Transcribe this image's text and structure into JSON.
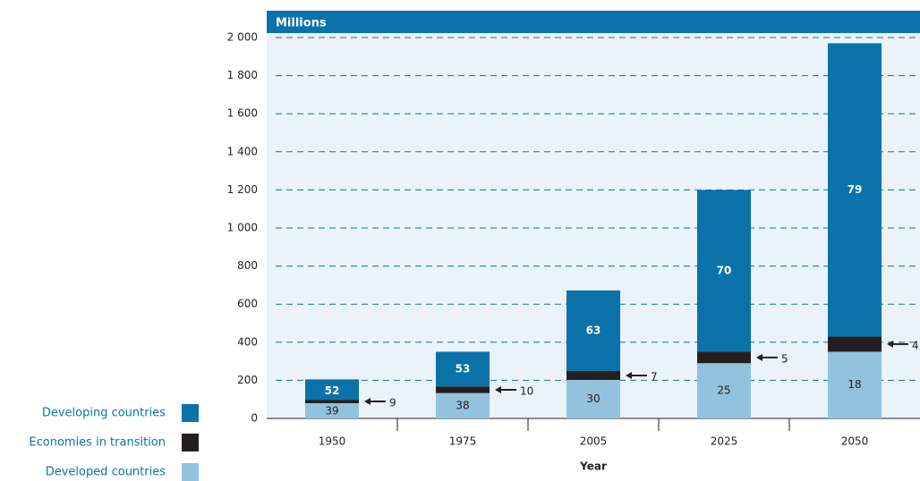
{
  "chart_data": {
    "type": "stacked_bar",
    "unit_label": "Millions",
    "xlabel": "Year",
    "categories": [
      "1950",
      "1975",
      "2005",
      "2025",
      "2050"
    ],
    "series": [
      {
        "name": "Developed countries",
        "color": "#92c2de",
        "values": [
          80,
          133,
          202,
          290,
          350
        ],
        "shares": [
          39,
          38,
          30,
          25,
          18
        ]
      },
      {
        "name": "Economies in transition",
        "color": "#231f20",
        "values": [
          18,
          35,
          47,
          60,
          80
        ],
        "shares": [
          9,
          10,
          7,
          5,
          4
        ]
      },
      {
        "name": "Developing countries",
        "color": "#0a72a8",
        "values": [
          107,
          182,
          423,
          850,
          1540
        ],
        "shares": [
          52,
          53,
          63,
          70,
          79
        ]
      }
    ],
    "ylim": [
      0,
      2000
    ],
    "yticks": [
      0,
      200,
      400,
      600,
      800,
      {
        "value": 1000,
        "label": "1 000"
      },
      {
        "value": 1200,
        "label": "1 200"
      },
      {
        "value": 1400,
        "label": "1 400"
      },
      {
        "value": 1600,
        "label": "1 600"
      },
      {
        "value": 1800,
        "label": "1 800"
      },
      {
        "value": 2000,
        "label": "2 000"
      }
    ],
    "grid": true
  }
}
